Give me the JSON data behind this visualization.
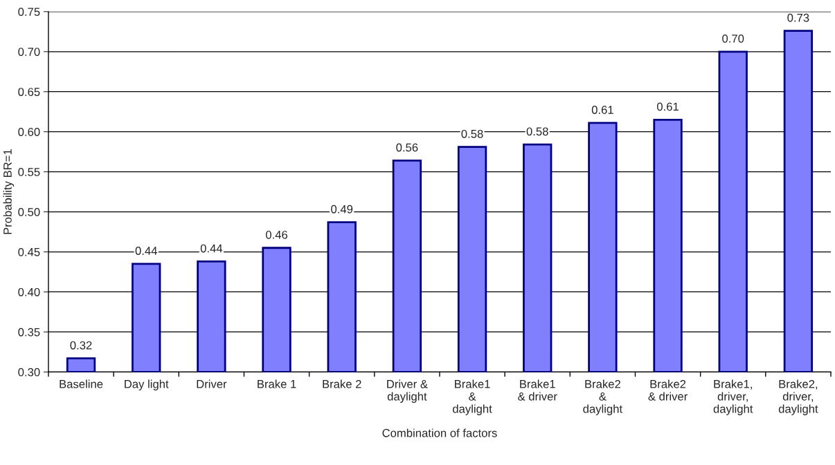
{
  "chart_data": {
    "type": "bar",
    "xlabel": "Combination of factors",
    "ylabel": "Probability BR=1",
    "categories": [
      "Baseline",
      "Day light",
      "Driver",
      "Brake 1",
      "Brake 2",
      "Driver &\ndaylight",
      "Brake1\n&\ndaylight",
      "Brake1\n& driver",
      "Brake2\n&\ndaylight",
      "Brake2\n& driver",
      "Brake1,\ndriver,\ndaylight",
      "Brake2,\ndriver,\ndaylight"
    ],
    "values": [
      0.317,
      0.435,
      0.438,
      0.455,
      0.487,
      0.564,
      0.581,
      0.584,
      0.611,
      0.615,
      0.7,
      0.726
    ],
    "value_labels": [
      "0.32",
      "0.44",
      "0.44",
      "0.46",
      "0.49",
      "0.56",
      "0.58",
      "0.58",
      "0.61",
      "0.61",
      "0.70",
      "0.73"
    ],
    "color": "#8080ff",
    "ylim": [
      0.3,
      0.75
    ],
    "yticks": [
      {
        "value": 0.3,
        "label": "0.30"
      },
      {
        "value": 0.35,
        "label": "0.35"
      },
      {
        "value": 0.4,
        "label": "0.40"
      },
      {
        "value": 0.45,
        "label": "0.45"
      },
      {
        "value": 0.5,
        "label": "0.50"
      },
      {
        "value": 0.55,
        "label": "0.55"
      },
      {
        "value": 0.6,
        "label": "0.60"
      },
      {
        "value": 0.65,
        "label": "0.65"
      },
      {
        "value": 0.7,
        "label": "0.70"
      },
      {
        "value": 0.75,
        "label": "0.75"
      }
    ],
    "grid": "y"
  }
}
